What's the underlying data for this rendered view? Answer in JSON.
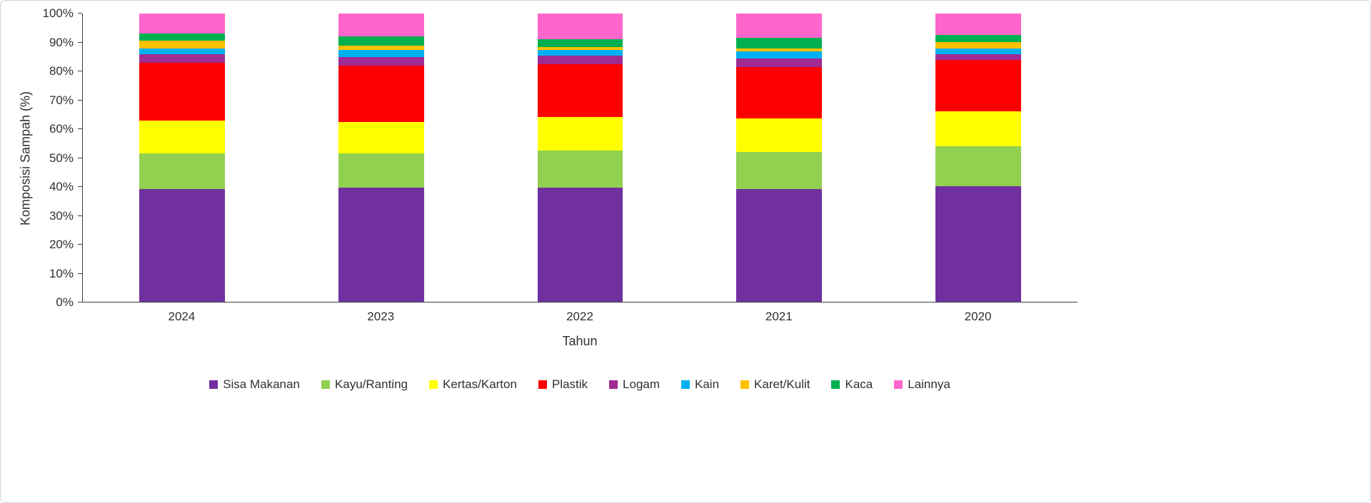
{
  "chart_data": {
    "type": "bar",
    "variant": "stacked-100",
    "title": "",
    "xlabel": "Tahun",
    "ylabel": "Komposisi Sampah (%)",
    "ylim": [
      0,
      100
    ],
    "ytick_labels": [
      "0%",
      "10%",
      "20%",
      "30%",
      "40%",
      "50%",
      "60%",
      "70%",
      "80%",
      "90%",
      "100%"
    ],
    "grid": false,
    "legend_position": "bottom",
    "categories": [
      "2024",
      "2023",
      "2022",
      "2021",
      "2020"
    ],
    "series": [
      {
        "name": "Sisa Makanan",
        "color": "#7030A0",
        "values": [
          39.0,
          39.5,
          39.5,
          39.0,
          40.0
        ]
      },
      {
        "name": "Kayu/Ranting",
        "color": "#92D050",
        "values": [
          12.5,
          12.0,
          13.0,
          13.0,
          14.0
        ]
      },
      {
        "name": "Kertas/Karton",
        "color": "#FFFF00",
        "values": [
          11.5,
          11.0,
          11.5,
          11.5,
          12.0
        ]
      },
      {
        "name": "Plastik",
        "color": "#FF0000",
        "values": [
          20.0,
          19.5,
          18.5,
          18.0,
          18.0
        ]
      },
      {
        "name": "Logam",
        "color": "#A02B93",
        "values": [
          3.0,
          3.0,
          3.0,
          3.0,
          2.0
        ]
      },
      {
        "name": "Kain",
        "color": "#00B0F0",
        "values": [
          2.0,
          2.5,
          2.0,
          2.5,
          2.0
        ]
      },
      {
        "name": "Karet/Kulit",
        "color": "#FFC000",
        "values": [
          2.5,
          1.5,
          1.0,
          1.0,
          2.0
        ]
      },
      {
        "name": "Kaca",
        "color": "#00B050",
        "values": [
          2.5,
          3.0,
          2.5,
          3.5,
          2.5
        ]
      },
      {
        "name": "Lainnya",
        "color": "#FF66CC",
        "values": [
          7.0,
          8.0,
          9.0,
          8.5,
          7.5
        ]
      }
    ]
  }
}
